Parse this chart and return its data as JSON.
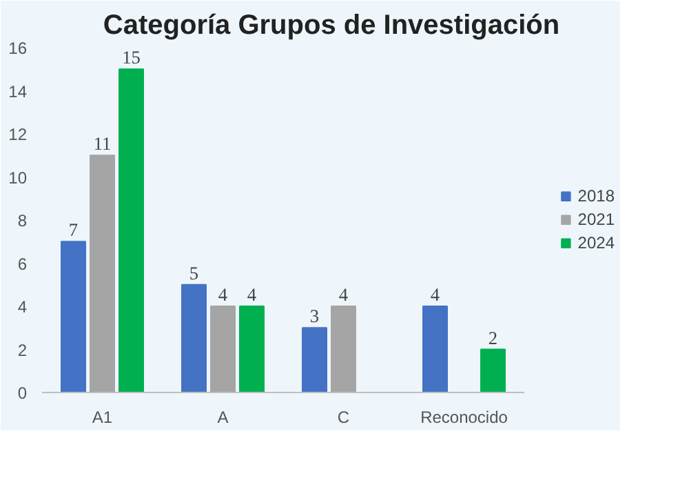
{
  "chart_data": {
    "type": "bar",
    "title": "Categoría Grupos de Investigación",
    "categories": [
      "A1",
      "A",
      "C",
      "Reconocido"
    ],
    "series": [
      {
        "name": "2018",
        "color": "#4472c4",
        "values": [
          7,
          5,
          3,
          4
        ]
      },
      {
        "name": "2021",
        "color": "#a5a5a5",
        "values": [
          11,
          4,
          4,
          null
        ]
      },
      {
        "name": "2024",
        "color": "#00b050",
        "values": [
          15,
          4,
          null,
          2
        ]
      }
    ],
    "ylim": [
      0,
      16
    ],
    "yticks": [
      0,
      2,
      4,
      6,
      8,
      10,
      12,
      14,
      16
    ],
    "grid": false,
    "legend": "right",
    "data_labels": true
  }
}
